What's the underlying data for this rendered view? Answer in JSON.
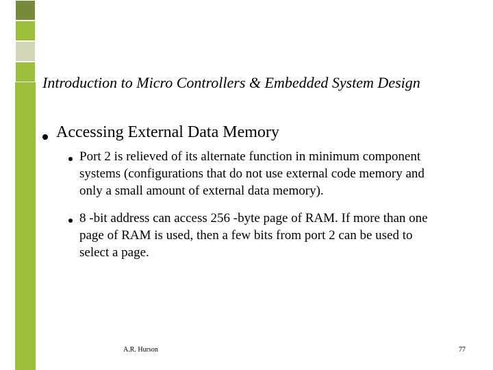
{
  "accent": {
    "square_colors": [
      "#778a39",
      "#9bbf3b",
      "#d1d6b9",
      "#9bbf3b"
    ],
    "stripe_color": "#9bbf3b"
  },
  "title": "Introduction to Micro Controllers & Embedded System Design",
  "main_bullet": "Accessing External Data Memory",
  "sub_bullets": [
    "Port 2 is relieved of its alternate function in minimum component systems (configurations that do not use external code memory and only a small amount of external data memory).",
    "8 -bit address can access 256 -byte page of RAM.  If more than one page of RAM is used, then a few bits from port 2 can be used to select a page."
  ],
  "footer": {
    "author": "A.R. Hurson",
    "page": "77"
  }
}
